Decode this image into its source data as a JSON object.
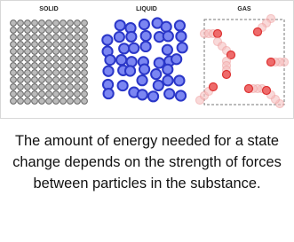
{
  "panels": [
    {
      "label": "SOLID"
    },
    {
      "label": "LIQUID"
    },
    {
      "label": "GAS"
    }
  ],
  "caption": "The amount of energy needed for a state change depends on the strength of forces between particles in the substance."
}
